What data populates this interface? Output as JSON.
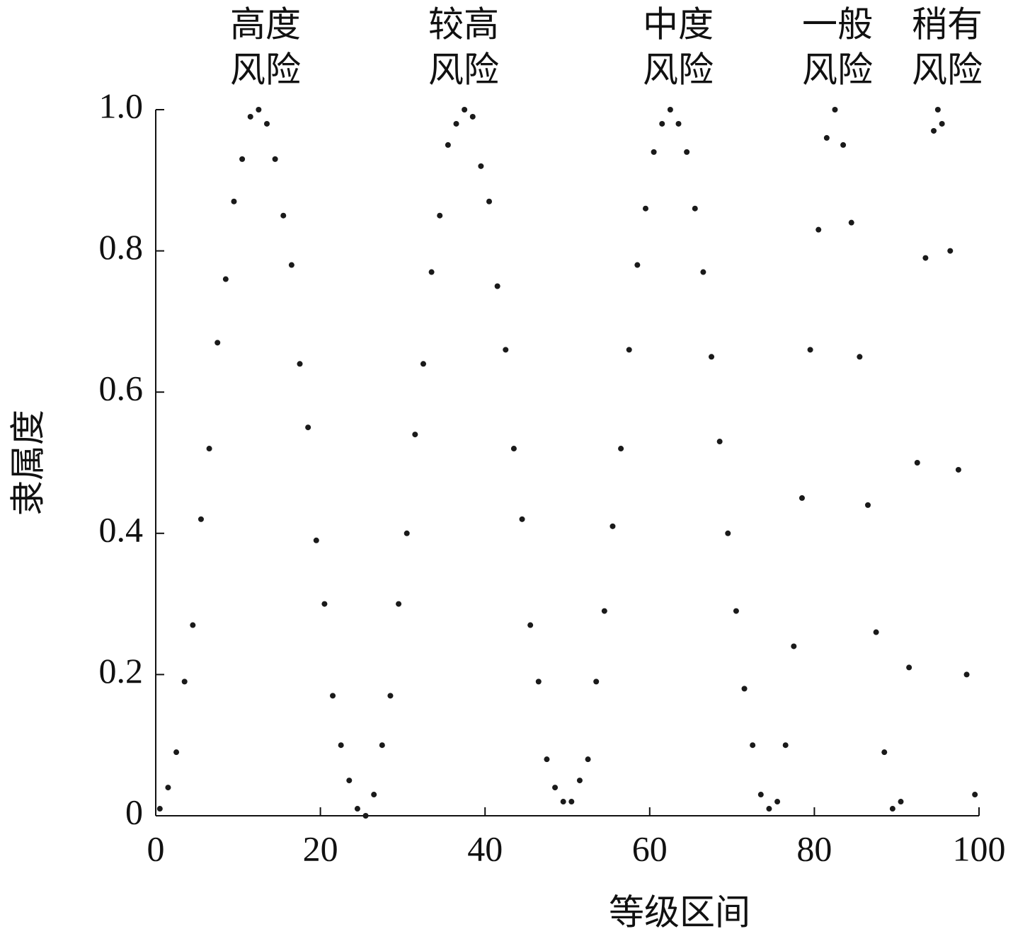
{
  "chart_data": {
    "type": "scatter",
    "xlabel": "等级区间",
    "ylabel": "隶属度",
    "annotations": [
      [
        "高度",
        "风险"
      ],
      [
        "较高",
        "风险"
      ],
      [
        "中度",
        "风险"
      ],
      [
        "一般",
        "风险"
      ],
      [
        "稍有",
        "风险"
      ]
    ],
    "color": "#1a1a1a",
    "xlim": [
      0,
      100
    ],
    "ylim": [
      0,
      1
    ],
    "xticks": [
      0,
      20,
      40,
      60,
      80,
      100
    ],
    "yticks": [
      0,
      0.2,
      0.4,
      0.6,
      0.8,
      {
        "value": 1,
        "label": "1.0"
      }
    ],
    "x": [
      0.5,
      1.5,
      2.5,
      3.5,
      4.5,
      5.5,
      6.5,
      7.5,
      8.5,
      9.5,
      10.5,
      11.5,
      12.5,
      13.5,
      14.5,
      15.5,
      16.5,
      17.5,
      18.5,
      19.5,
      20.5,
      21.5,
      22.5,
      23.5,
      24.5,
      25.5,
      26.5,
      27.5,
      28.5,
      29.5,
      30.5,
      31.5,
      32.5,
      33.5,
      34.5,
      35.5,
      36.5,
      37.5,
      38.5,
      39.5,
      40.5,
      41.5,
      42.5,
      43.5,
      44.5,
      45.5,
      46.5,
      47.5,
      48.5,
      49.5,
      50.5,
      51.5,
      52.5,
      53.5,
      54.5,
      55.5,
      56.5,
      57.5,
      58.5,
      59.5,
      60.5,
      61.5,
      62.5,
      63.5,
      64.5,
      65.5,
      66.5,
      67.5,
      68.5,
      69.5,
      70.5,
      71.5,
      72.5,
      73.5,
      74.5,
      75.5,
      76.5,
      77.5,
      78.5,
      79.5,
      80.5,
      81.5,
      82.5,
      83.5,
      84.5,
      85.5,
      86.5,
      87.5,
      88.5,
      89.5,
      90.5,
      91.5,
      92.5,
      93.5,
      94.5,
      95,
      95.5,
      96.5,
      97.5,
      98.5,
      99.5
    ],
    "y": [
      0.01,
      0.04,
      0.09,
      0.19,
      0.27,
      0.42,
      0.52,
      0.67,
      0.76,
      0.87,
      0.93,
      0.99,
      1.0,
      0.98,
      0.93,
      0.85,
      0.78,
      0.64,
      0.55,
      0.39,
      0.3,
      0.17,
      0.1,
      0.05,
      0.01,
      0.0,
      0.03,
      0.1,
      0.17,
      0.3,
      0.4,
      0.54,
      0.64,
      0.77,
      0.85,
      0.95,
      0.98,
      1.0,
      0.99,
      0.92,
      0.87,
      0.75,
      0.66,
      0.52,
      0.42,
      0.27,
      0.19,
      0.08,
      0.04,
      0.02,
      0.02,
      0.05,
      0.08,
      0.19,
      0.29,
      0.41,
      0.52,
      0.66,
      0.78,
      0.86,
      0.94,
      0.98,
      1.0,
      0.98,
      0.94,
      0.86,
      0.77,
      0.65,
      0.53,
      0.4,
      0.29,
      0.18,
      0.1,
      0.03,
      0.01,
      0.02,
      0.1,
      0.24,
      0.45,
      0.66,
      0.83,
      0.96,
      1.0,
      0.95,
      0.84,
      0.65,
      0.44,
      0.26,
      0.09,
      0.01,
      0.02,
      0.21,
      0.5,
      0.79,
      0.97,
      1.0,
      0.98,
      0.8,
      0.49,
      0.2,
      0.03
    ]
  }
}
